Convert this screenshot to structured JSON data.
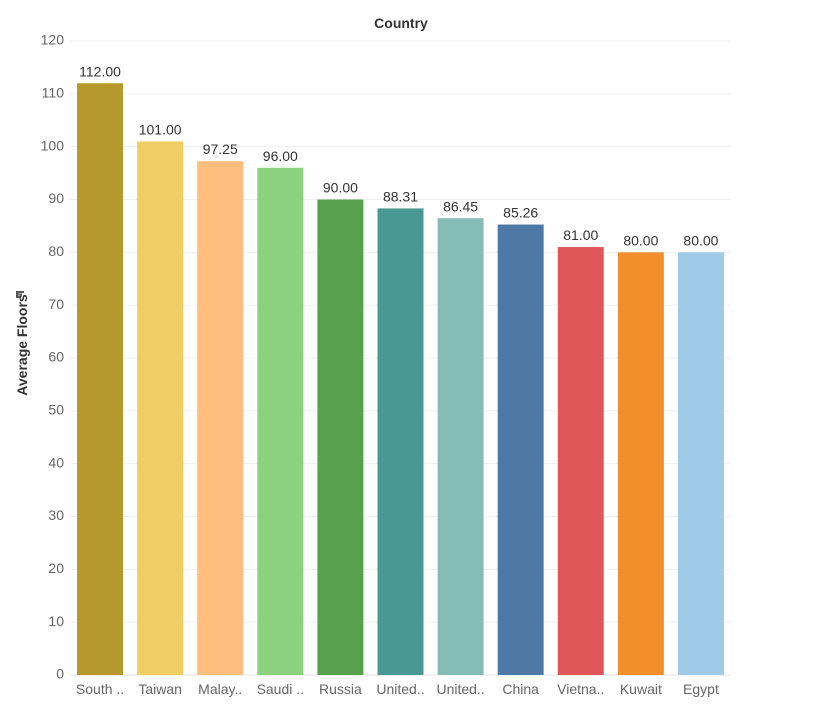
{
  "chart_data": {
    "type": "bar",
    "title": "Country",
    "xlabel": "",
    "ylabel": "Average Floors",
    "ylim": [
      0,
      120
    ],
    "yticks": [
      0,
      10,
      20,
      30,
      40,
      50,
      60,
      70,
      80,
      90,
      100,
      110,
      120
    ],
    "grid": true,
    "sorted": "descending",
    "categories": [
      "South ..",
      "Taiwan",
      "Malay..",
      "Saudi ..",
      "Russia",
      "United..",
      "United..",
      "China",
      "Vietna..",
      "Kuwait",
      "Egypt"
    ],
    "values": [
      112.0,
      101.0,
      97.25,
      96.0,
      90.0,
      88.31,
      86.45,
      85.26,
      81.0,
      80.0,
      80.0
    ],
    "data_labels": [
      "112.00",
      "101.00",
      "97.25",
      "96.00",
      "90.00",
      "88.31",
      "86.45",
      "85.26",
      "81.00",
      "80.00",
      "80.00"
    ],
    "colors": [
      "#b6992d",
      "#f1ce63",
      "#ffbe7d",
      "#8cd17d",
      "#59a14f",
      "#499894",
      "#86bcb6",
      "#4e79a7",
      "#e15759",
      "#f28e2b",
      "#a0cbe8"
    ],
    "sort_icon": "sort-descending-icon"
  }
}
